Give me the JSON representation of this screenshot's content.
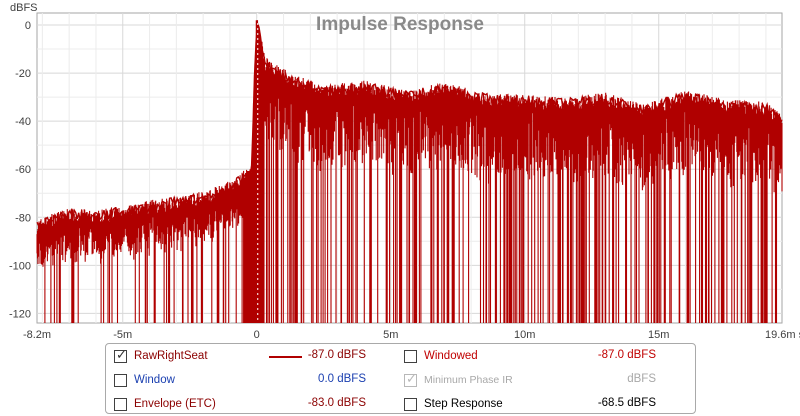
{
  "chart_data": {
    "type": "line",
    "title": "Impulse Response",
    "ylabel": "dBFS",
    "xlabel": "",
    "x_unit": "s",
    "xlim": [
      -0.0082,
      0.0196
    ],
    "ylim": [
      -124,
      5
    ],
    "x_ticks": [
      -0.0082,
      -0.005,
      0,
      0.005,
      0.01,
      0.015,
      0.0196
    ],
    "x_tick_labels": [
      "-8.2m",
      "-5m",
      "0",
      "5m",
      "10m",
      "15m",
      "19.6m s"
    ],
    "y_ticks": [
      0,
      -20,
      -40,
      -60,
      -80,
      -100,
      -120
    ],
    "y_tick_labels": [
      "0",
      "-20",
      "-40",
      "-60",
      "-80",
      "-100",
      "-120"
    ],
    "grid": true,
    "series": [
      {
        "name": "RawRightSeat",
        "color": "#b00000",
        "note": "dense impulse-response trace; upper envelope samples listed, deep notches reach the floor",
        "envelope_x": [
          -0.0082,
          -0.0075,
          -0.007,
          -0.006,
          -0.005,
          -0.004,
          -0.003,
          -0.002,
          -0.0012,
          -0.0006,
          -0.0002,
          0.0,
          0.0003,
          0.0008,
          0.0015,
          0.0025,
          0.004,
          0.0055,
          0.007,
          0.0085,
          0.01,
          0.0115,
          0.013,
          0.0145,
          0.016,
          0.0175,
          0.019,
          0.0196
        ],
        "envelope_y": [
          -84,
          -81,
          -79,
          -80,
          -78,
          -76,
          -74,
          -72,
          -69,
          -65,
          -60,
          2,
          -16,
          -20,
          -24,
          -28,
          -26,
          -30,
          -27,
          -31,
          -32,
          -33,
          -31,
          -36,
          -30,
          -34,
          -35,
          -40
        ]
      }
    ]
  },
  "legend": {
    "rows": [
      {
        "name": "RawRightSeat",
        "checked": true,
        "enabled": true,
        "value": "-87.0 dBFS",
        "color": "#8b0000",
        "swatch_color": "#b00000"
      },
      {
        "name": "Windowed",
        "checked": false,
        "enabled": true,
        "value": "-87.0 dBFS",
        "color": "#c00000"
      },
      {
        "name": "Window",
        "checked": false,
        "enabled": true,
        "value": "0.0 dBFS",
        "color": "#1a3fb0"
      },
      {
        "name": "Minimum Phase IR",
        "checked": true,
        "enabled": false,
        "value": "dBFS",
        "color": "#a8a8a8"
      },
      {
        "name": "Envelope (ETC)",
        "checked": false,
        "enabled": true,
        "value": "-83.0 dBFS",
        "color": "#8b0000"
      },
      {
        "name": "Step Response",
        "checked": false,
        "enabled": true,
        "value": "-68.5 dBFS",
        "color": "#000000"
      }
    ]
  }
}
